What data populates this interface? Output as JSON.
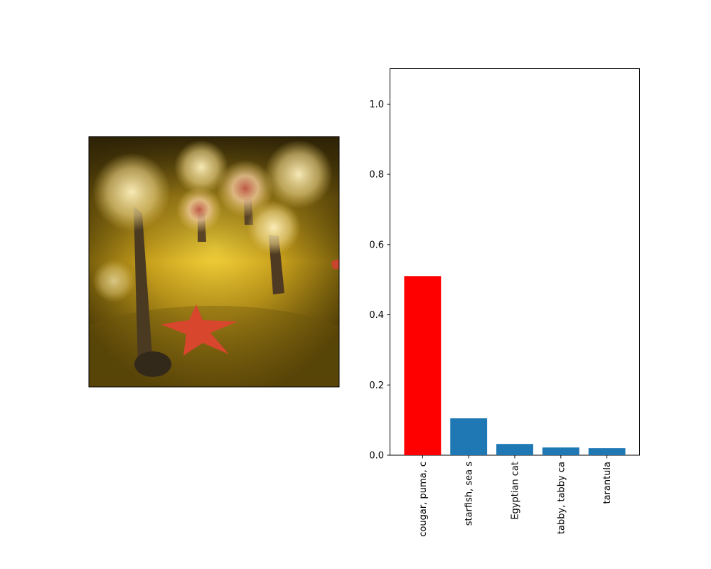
{
  "image_panel": {
    "subject": "sea anemones with starfish on sandy seabed"
  },
  "chart_data": {
    "type": "bar",
    "categories": [
      "cougar, puma, c",
      "starfish, sea s",
      "Egyptian cat",
      "tabby, tabby ca",
      "tarantula"
    ],
    "values": [
      0.51,
      0.105,
      0.032,
      0.022,
      0.02
    ],
    "ylim": [
      0,
      1.1
    ],
    "yticks": [
      "0.0",
      "0.2",
      "0.4",
      "0.6",
      "0.8",
      "1.0"
    ],
    "ytick_values": [
      0,
      0.2,
      0.4,
      0.6,
      0.8,
      1.0
    ],
    "highlight_index": 0,
    "highlight_color": "#ff0000",
    "bar_color": "#1f77b4",
    "title": "",
    "xlabel": "",
    "ylabel": "",
    "grid": false
  }
}
